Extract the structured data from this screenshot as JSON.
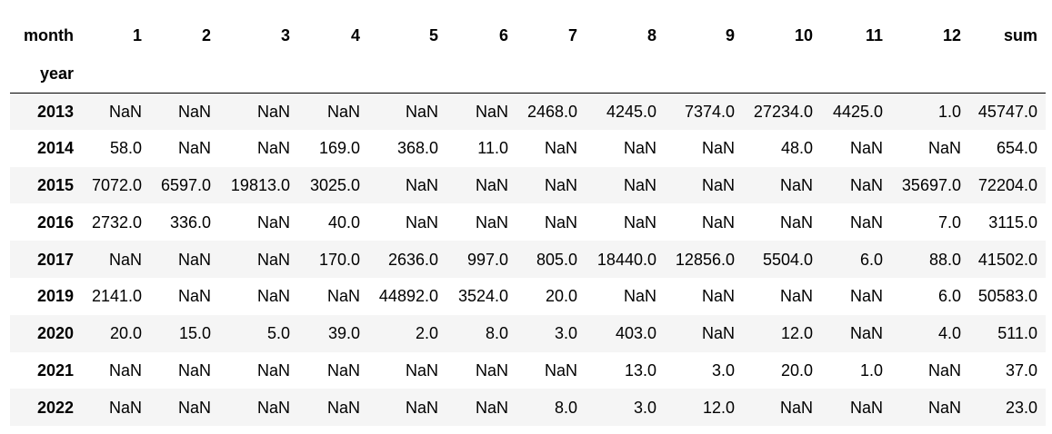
{
  "table": {
    "columns_name": "month",
    "index_name": "year",
    "columns": [
      "1",
      "2",
      "3",
      "4",
      "5",
      "6",
      "7",
      "8",
      "9",
      "10",
      "11",
      "12",
      "sum"
    ],
    "rows": [
      {
        "year": "2013",
        "values": [
          "NaN",
          "NaN",
          "NaN",
          "NaN",
          "NaN",
          "NaN",
          "2468.0",
          "4245.0",
          "7374.0",
          "27234.0",
          "4425.0",
          "1.0",
          "45747.0"
        ]
      },
      {
        "year": "2014",
        "values": [
          "58.0",
          "NaN",
          "NaN",
          "169.0",
          "368.0",
          "11.0",
          "NaN",
          "NaN",
          "NaN",
          "48.0",
          "NaN",
          "NaN",
          "654.0"
        ]
      },
      {
        "year": "2015",
        "values": [
          "7072.0",
          "6597.0",
          "19813.0",
          "3025.0",
          "NaN",
          "NaN",
          "NaN",
          "NaN",
          "NaN",
          "NaN",
          "NaN",
          "35697.0",
          "72204.0"
        ]
      },
      {
        "year": "2016",
        "values": [
          "2732.0",
          "336.0",
          "NaN",
          "40.0",
          "NaN",
          "NaN",
          "NaN",
          "NaN",
          "NaN",
          "NaN",
          "NaN",
          "7.0",
          "3115.0"
        ]
      },
      {
        "year": "2017",
        "values": [
          "NaN",
          "NaN",
          "NaN",
          "170.0",
          "2636.0",
          "997.0",
          "805.0",
          "18440.0",
          "12856.0",
          "5504.0",
          "6.0",
          "88.0",
          "41502.0"
        ]
      },
      {
        "year": "2019",
        "values": [
          "2141.0",
          "NaN",
          "NaN",
          "NaN",
          "44892.0",
          "3524.0",
          "20.0",
          "NaN",
          "NaN",
          "NaN",
          "NaN",
          "6.0",
          "50583.0"
        ]
      },
      {
        "year": "2020",
        "values": [
          "20.0",
          "15.0",
          "5.0",
          "39.0",
          "2.0",
          "8.0",
          "3.0",
          "403.0",
          "NaN",
          "12.0",
          "NaN",
          "4.0",
          "511.0"
        ]
      },
      {
        "year": "2021",
        "values": [
          "NaN",
          "NaN",
          "NaN",
          "NaN",
          "NaN",
          "NaN",
          "NaN",
          "13.0",
          "3.0",
          "20.0",
          "1.0",
          "NaN",
          "37.0"
        ]
      },
      {
        "year": "2022",
        "values": [
          "NaN",
          "NaN",
          "NaN",
          "NaN",
          "NaN",
          "NaN",
          "8.0",
          "3.0",
          "12.0",
          "NaN",
          "NaN",
          "NaN",
          "23.0"
        ]
      }
    ]
  }
}
